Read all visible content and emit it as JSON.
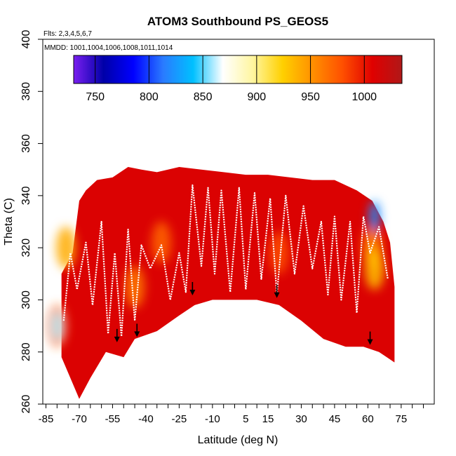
{
  "chart_data": {
    "type": "heatmap",
    "title": "ATOM3 Southbound PS_GEOS5",
    "flights_note": "Flts: 2,3,4,5,6,7",
    "dates_note": "MMDD: 1001,1004,1006,1008,1011,1014",
    "xlabel": "Latitude (deg N)",
    "ylabel": "Theta (C)",
    "xlim": [
      -85,
      85
    ],
    "ylim": [
      260,
      400
    ],
    "x_ticks": [
      -85,
      -70,
      -55,
      -40,
      -25,
      -10,
      5,
      15,
      30,
      45,
      60,
      75
    ],
    "y_ticks": [
      260,
      280,
      300,
      320,
      340,
      360,
      380,
      400
    ],
    "colorbar": {
      "label_values": [
        750,
        800,
        850,
        900,
        950,
        1000
      ],
      "range": [
        730,
        1035
      ],
      "colors": [
        "#7a1ff0",
        "#0000a8",
        "#0000ff",
        "#2a7bff",
        "#00c0ff",
        "#ffffff",
        "#fff6a0",
        "#ffd000",
        "#ff9000",
        "#ff5000",
        "#e00000",
        "#b01818"
      ]
    },
    "curtain_top": [
      [
        -78,
        310
      ],
      [
        -73,
        318
      ],
      [
        -70,
        338
      ],
      [
        -67,
        342
      ],
      [
        -62,
        346
      ],
      [
        -55,
        347
      ],
      [
        -48,
        351
      ],
      [
        -42,
        350
      ],
      [
        -35,
        349
      ],
      [
        -25,
        351
      ],
      [
        -15,
        350
      ],
      [
        -5,
        349
      ],
      [
        5,
        348
      ],
      [
        15,
        348
      ],
      [
        25,
        347
      ],
      [
        35,
        346
      ],
      [
        45,
        346
      ],
      [
        55,
        342
      ],
      [
        62,
        338
      ],
      [
        67,
        330
      ],
      [
        70,
        322
      ],
      [
        72,
        305
      ]
    ],
    "curtain_bottom": [
      [
        -78,
        278
      ],
      [
        -73,
        268
      ],
      [
        -70,
        262
      ],
      [
        -65,
        270
      ],
      [
        -58,
        280
      ],
      [
        -50,
        278
      ],
      [
        -45,
        285
      ],
      [
        -35,
        288
      ],
      [
        -25,
        294
      ],
      [
        -18,
        298
      ],
      [
        -10,
        300
      ],
      [
        0,
        300
      ],
      [
        10,
        300
      ],
      [
        20,
        298
      ],
      [
        30,
        292
      ],
      [
        40,
        285
      ],
      [
        50,
        282
      ],
      [
        58,
        282
      ],
      [
        65,
        280
      ],
      [
        72,
        276
      ]
    ],
    "warm_patches": [
      [
        -80,
        290,
        960
      ],
      [
        -76,
        320,
        940
      ],
      [
        -45,
        305,
        960
      ],
      [
        -33,
        322,
        970
      ],
      [
        20,
        318,
        980
      ],
      [
        62,
        320,
        955
      ],
      [
        63,
        312,
        930
      ]
    ],
    "cold_patches": [
      [
        -80,
        290,
        860
      ],
      [
        63,
        332,
        820
      ]
    ],
    "trajectories": [
      [
        [
          -77,
          292
        ],
        [
          -74,
          318
        ],
        [
          -71,
          304
        ],
        [
          -67,
          322
        ],
        [
          -64,
          298
        ],
        [
          -60,
          330
        ],
        [
          -57,
          287
        ],
        [
          -54,
          318
        ],
        [
          -51,
          286
        ],
        [
          -48,
          327
        ],
        [
          -45,
          292
        ],
        [
          -42,
          321
        ],
        [
          -38,
          312
        ],
        [
          -33,
          321
        ],
        [
          -29,
          300
        ],
        [
          -25,
          318
        ],
        [
          -22,
          303
        ],
        [
          -19,
          344
        ],
        [
          -15,
          313
        ],
        [
          -12,
          343
        ],
        [
          -9,
          310
        ],
        [
          -6,
          342
        ],
        [
          -2,
          303
        ],
        [
          2,
          343
        ],
        [
          5,
          304
        ],
        [
          9,
          341
        ],
        [
          12,
          308
        ],
        [
          16,
          339
        ],
        [
          19,
          302
        ],
        [
          23,
          340
        ],
        [
          27,
          310
        ],
        [
          31,
          336
        ],
        [
          35,
          312
        ],
        [
          39,
          330
        ],
        [
          42,
          302
        ],
        [
          45,
          332
        ],
        [
          48,
          300
        ],
        [
          52,
          330
        ],
        [
          55,
          295
        ],
        [
          58,
          332
        ],
        [
          61,
          318
        ],
        [
          65,
          328
        ],
        [
          69,
          308
        ]
      ]
    ],
    "arrows": [
      [
        -53,
        284
      ],
      [
        -44,
        286
      ],
      [
        -19,
        302
      ],
      [
        19,
        301
      ],
      [
        61,
        283
      ]
    ]
  }
}
